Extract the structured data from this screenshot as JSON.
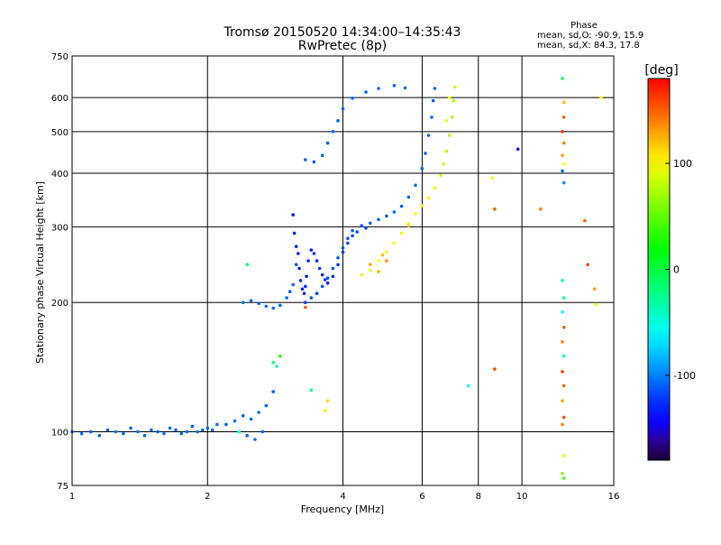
{
  "chart_data": {
    "type": "scatter",
    "title": "Tromsø 20150520 14:34:00–14:35:43",
    "subtitle": "RwPretec (8p)",
    "xlabel": "Frequency [MHz]",
    "ylabel": "Stationary phase Virtual Height [km]",
    "x_scale": "log",
    "y_scale": "log",
    "xlim": [
      1,
      16
    ],
    "ylim": [
      75,
      750
    ],
    "x_ticks": [
      1,
      2,
      4,
      6,
      8,
      10,
      16
    ],
    "y_ticks": [
      75,
      100,
      200,
      300,
      400,
      500,
      600,
      750
    ],
    "x_grid": [
      2,
      4,
      6,
      8,
      10
    ],
    "y_grid": [
      100,
      200,
      300,
      400,
      500,
      600
    ],
    "grid": true,
    "phase_info": {
      "title": "Phase",
      "line1": "mean, sd,O: -90.9, 15.9",
      "line2": "mean, sd,X:  84.3, 17.8"
    },
    "colorbar": {
      "label": "[deg]",
      "range": [
        -180,
        180
      ],
      "ticks": [
        100,
        0,
        -100
      ],
      "colormap": "rainbow"
    },
    "series": [
      {
        "points": [
          [
            1.0,
            100,
            -110
          ],
          [
            1.05,
            99,
            -105
          ],
          [
            1.1,
            100,
            -112
          ],
          [
            1.15,
            98,
            -108
          ],
          [
            1.2,
            101,
            -110
          ],
          [
            1.25,
            100,
            -104
          ],
          [
            1.3,
            99,
            -109
          ],
          [
            1.35,
            102,
            -111
          ],
          [
            1.4,
            100,
            -106
          ],
          [
            1.45,
            98,
            -110
          ],
          [
            1.5,
            101,
            -108
          ],
          [
            1.55,
            100,
            -112
          ],
          [
            1.6,
            99,
            -105
          ],
          [
            1.65,
            102,
            -107
          ],
          [
            1.7,
            101,
            -110
          ],
          [
            1.75,
            99,
            -109
          ],
          [
            1.8,
            100,
            -108
          ],
          [
            1.85,
            103,
            -111
          ],
          [
            1.9,
            100,
            -106
          ],
          [
            1.95,
            101,
            -109
          ],
          [
            2.0,
            102,
            -108
          ],
          [
            2.05,
            101,
            -110
          ],
          [
            2.1,
            104,
            -107
          ],
          [
            2.2,
            104,
            -109
          ],
          [
            2.3,
            106,
            -108
          ],
          [
            2.4,
            109,
            -110
          ],
          [
            2.5,
            107,
            -111
          ],
          [
            2.6,
            111,
            -106
          ],
          [
            2.7,
            115,
            -109
          ],
          [
            2.8,
            124,
            -110
          ],
          [
            2.45,
            98,
            -112
          ],
          [
            2.55,
            96,
            -108
          ],
          [
            2.65,
            100,
            -107
          ]
        ]
      },
      {
        "points": [
          [
            2.4,
            200,
            -105
          ],
          [
            2.5,
            202,
            -108
          ],
          [
            2.6,
            199,
            -110
          ],
          [
            2.7,
            196,
            -106
          ],
          [
            2.8,
            194,
            -109
          ],
          [
            2.9,
            197,
            -107
          ],
          [
            3.0,
            205,
            -108
          ],
          [
            3.05,
            212,
            -111
          ],
          [
            3.1,
            220,
            -110
          ],
          [
            3.15,
            245,
            -115
          ]
        ]
      },
      {
        "points": [
          [
            3.1,
            320,
            -135
          ],
          [
            3.12,
            290,
            -130
          ],
          [
            3.15,
            270,
            -128
          ],
          [
            3.18,
            260,
            -132
          ],
          [
            3.2,
            240,
            -130
          ],
          [
            3.22,
            225,
            -126
          ],
          [
            3.25,
            215,
            -131
          ],
          [
            3.28,
            210,
            -129
          ],
          [
            3.3,
            218,
            -127
          ],
          [
            3.32,
            230,
            -133
          ],
          [
            3.35,
            250,
            -128
          ],
          [
            3.4,
            265,
            -130
          ],
          [
            3.45,
            260,
            -126
          ],
          [
            3.5,
            250,
            -129
          ],
          [
            3.55,
            240,
            -125
          ],
          [
            3.6,
            232,
            -128
          ],
          [
            3.65,
            226,
            -126
          ],
          [
            3.7,
            222,
            -130
          ],
          [
            3.8,
            230,
            -127
          ],
          [
            3.9,
            245,
            -125
          ],
          [
            4.0,
            262,
            -122
          ],
          [
            4.1,
            275,
            -120
          ],
          [
            4.2,
            286,
            -118
          ],
          [
            4.3,
            292,
            -120
          ],
          [
            4.5,
            298,
            -118
          ]
        ]
      },
      {
        "points": [
          [
            3.3,
            200,
            -118
          ],
          [
            3.4,
            205,
            -115
          ],
          [
            3.5,
            210,
            -118
          ],
          [
            3.6,
            218,
            -116
          ],
          [
            3.7,
            228,
            -114
          ],
          [
            3.8,
            240,
            -116
          ],
          [
            3.9,
            254,
            -113
          ],
          [
            4.0,
            268,
            -112
          ],
          [
            4.1,
            282,
            -114
          ],
          [
            4.2,
            294,
            -112
          ],
          [
            4.4,
            302,
            -110
          ],
          [
            4.6,
            306,
            -112
          ],
          [
            4.8,
            312,
            -110
          ],
          [
            5.0,
            318,
            -111
          ],
          [
            5.2,
            325,
            -109
          ],
          [
            5.4,
            335,
            -112
          ],
          [
            5.6,
            352,
            -110
          ],
          [
            5.8,
            375,
            -108
          ],
          [
            6.0,
            410,
            -110
          ],
          [
            6.1,
            445,
            -109
          ],
          [
            6.2,
            490,
            -111
          ],
          [
            6.3,
            540,
            -108
          ],
          [
            6.35,
            590,
            -110
          ],
          [
            6.4,
            630,
            -109
          ]
        ]
      },
      {
        "points": [
          [
            3.3,
            430,
            -112
          ],
          [
            3.45,
            425,
            -114
          ],
          [
            3.6,
            440,
            -110
          ],
          [
            3.7,
            470,
            -112
          ],
          [
            3.8,
            500,
            -109
          ],
          [
            3.9,
            530,
            -111
          ],
          [
            4.0,
            565,
            -110
          ],
          [
            4.2,
            598,
            -108
          ],
          [
            4.5,
            618,
            -110
          ],
          [
            4.8,
            630,
            -109
          ],
          [
            5.2,
            640,
            -111
          ],
          [
            5.5,
            632,
            -108
          ]
        ]
      },
      {
        "points": [
          [
            4.4,
            232,
            95
          ],
          [
            4.6,
            238,
            90
          ],
          [
            4.8,
            250,
            100
          ],
          [
            5.0,
            262,
            105
          ],
          [
            5.2,
            275,
            98
          ],
          [
            5.4,
            290,
            102
          ],
          [
            5.6,
            305,
            96
          ],
          [
            5.8,
            322,
            100
          ],
          [
            6.0,
            336,
            104
          ],
          [
            6.2,
            350,
            98
          ],
          [
            6.4,
            370,
            92
          ],
          [
            6.6,
            395,
            85
          ],
          [
            6.7,
            420,
            80
          ],
          [
            6.8,
            450,
            78
          ],
          [
            6.9,
            490,
            72
          ],
          [
            7.0,
            540,
            70
          ],
          [
            7.05,
            590,
            74
          ],
          [
            7.1,
            635,
            80
          ]
        ]
      },
      {
        "points": [
          [
            4.6,
            245,
            130
          ],
          [
            4.8,
            236,
            125
          ],
          [
            5.0,
            250,
            135
          ],
          [
            4.9,
            258,
            120
          ],
          [
            6.8,
            530,
            95
          ],
          [
            6.9,
            600,
            100
          ],
          [
            5.6,
            302,
            110
          ],
          [
            3.7,
            118,
            112
          ],
          [
            3.65,
            112,
            95
          ]
        ]
      },
      {
        "points": [
          [
            8.6,
            390,
            90
          ],
          [
            8.7,
            330,
            150
          ],
          [
            8.7,
            140,
            160
          ],
          [
            9.8,
            455,
            -150
          ],
          [
            11.0,
            330,
            140
          ],
          [
            7.6,
            128,
            -60
          ],
          [
            12.3,
            665,
            -10
          ],
          [
            12.4,
            585,
            120
          ],
          [
            12.4,
            540,
            150
          ],
          [
            12.3,
            500,
            165
          ],
          [
            12.4,
            470,
            140
          ],
          [
            12.3,
            440,
            130
          ],
          [
            12.4,
            420,
            100
          ],
          [
            12.3,
            405,
            -110
          ],
          [
            12.4,
            380,
            -95
          ],
          [
            12.3,
            225,
            -40
          ],
          [
            12.4,
            205,
            -30
          ],
          [
            12.3,
            190,
            -60
          ],
          [
            12.4,
            175,
            150
          ],
          [
            12.3,
            162,
            140
          ],
          [
            12.4,
            150,
            -40
          ],
          [
            12.3,
            138,
            160
          ],
          [
            12.4,
            128,
            150
          ],
          [
            12.3,
            118,
            130
          ],
          [
            12.4,
            108,
            155
          ],
          [
            12.3,
            104,
            140
          ],
          [
            12.4,
            88,
            90
          ],
          [
            12.3,
            80,
            60
          ],
          [
            12.4,
            78,
            40
          ],
          [
            13.8,
            310,
            150
          ],
          [
            14.0,
            245,
            160
          ],
          [
            14.5,
            215,
            130
          ],
          [
            14.6,
            198,
            90
          ],
          [
            15.0,
            600,
            100
          ],
          [
            2.8,
            145,
            -20
          ],
          [
            2.85,
            142,
            -40
          ],
          [
            2.9,
            150,
            30
          ],
          [
            3.4,
            125,
            -30
          ],
          [
            3.3,
            195,
            150
          ],
          [
            2.45,
            245,
            -20
          ],
          [
            2.35,
            100,
            -60
          ]
        ]
      }
    ]
  }
}
